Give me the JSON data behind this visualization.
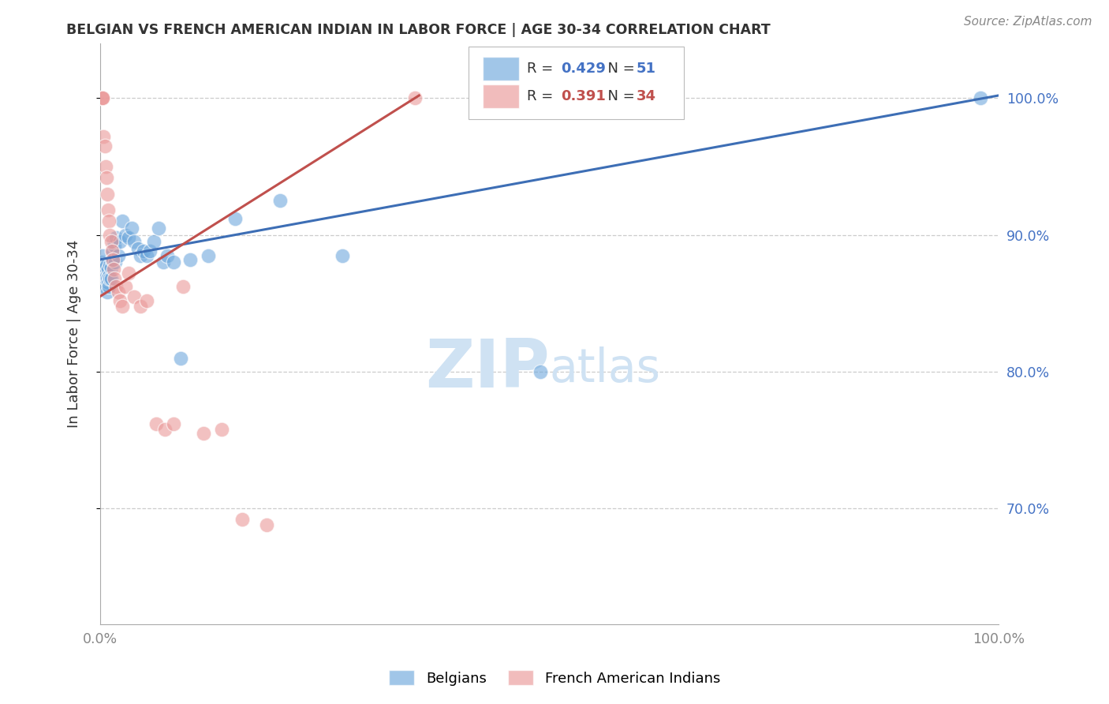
{
  "title": "BELGIAN VS FRENCH AMERICAN INDIAN IN LABOR FORCE | AGE 30-34 CORRELATION CHART",
  "source": "Source: ZipAtlas.com",
  "ylabel": "In Labor Force | Age 30-34",
  "xlim": [
    0.0,
    1.0
  ],
  "ylim": [
    0.615,
    1.04
  ],
  "yticks": [
    0.7,
    0.8,
    0.9,
    1.0
  ],
  "ytick_labels": [
    "70.0%",
    "80.0%",
    "90.0%",
    "100.0%"
  ],
  "xticks": [
    0.0,
    0.2,
    0.4,
    0.6,
    0.8,
    1.0
  ],
  "xtick_labels": [
    "0.0%",
    "",
    "",
    "",
    "",
    "100.0%"
  ],
  "legend_blue_R": "0.429",
  "legend_blue_N": "51",
  "legend_pink_R": "0.391",
  "legend_pink_N": "34",
  "blue_color": "#6fa8dc",
  "pink_color": "#ea9999",
  "blue_line_color": "#3d6eb5",
  "pink_line_color": "#c0504d",
  "watermark_color": "#cfe2f3",
  "blue_line_x": [
    0.0,
    1.0
  ],
  "blue_line_y": [
    0.882,
    1.002
  ],
  "pink_line_x": [
    0.0,
    0.355
  ],
  "pink_line_y": [
    0.855,
    1.002
  ],
  "blue_scatter_x": [
    0.002,
    0.003,
    0.004,
    0.004,
    0.005,
    0.005,
    0.006,
    0.006,
    0.007,
    0.007,
    0.008,
    0.008,
    0.009,
    0.009,
    0.01,
    0.01,
    0.011,
    0.011,
    0.012,
    0.012,
    0.013,
    0.014,
    0.015,
    0.016,
    0.017,
    0.018,
    0.02,
    0.022,
    0.025,
    0.028,
    0.032,
    0.035,
    0.038,
    0.042,
    0.045,
    0.048,
    0.052,
    0.055,
    0.06,
    0.065,
    0.07,
    0.075,
    0.082,
    0.09,
    0.1,
    0.12,
    0.15,
    0.2,
    0.27,
    0.49,
    0.98
  ],
  "blue_scatter_y": [
    0.88,
    0.885,
    0.87,
    0.878,
    0.862,
    0.872,
    0.868,
    0.876,
    0.87,
    0.878,
    0.858,
    0.868,
    0.875,
    0.865,
    0.862,
    0.87,
    0.878,
    0.868,
    0.876,
    0.868,
    0.882,
    0.888,
    0.895,
    0.892,
    0.88,
    0.898,
    0.885,
    0.895,
    0.91,
    0.9,
    0.898,
    0.905,
    0.895,
    0.89,
    0.885,
    0.888,
    0.885,
    0.888,
    0.895,
    0.905,
    0.88,
    0.885,
    0.88,
    0.81,
    0.882,
    0.885,
    0.912,
    0.925,
    0.885,
    0.8,
    1.0
  ],
  "pink_scatter_x": [
    0.002,
    0.003,
    0.003,
    0.004,
    0.005,
    0.006,
    0.007,
    0.008,
    0.009,
    0.01,
    0.011,
    0.012,
    0.013,
    0.014,
    0.015,
    0.016,
    0.018,
    0.02,
    0.022,
    0.025,
    0.028,
    0.032,
    0.038,
    0.045,
    0.052,
    0.062,
    0.072,
    0.082,
    0.092,
    0.115,
    0.135,
    0.158,
    0.185,
    0.35
  ],
  "pink_scatter_y": [
    1.0,
    1.0,
    1.0,
    0.972,
    0.965,
    0.95,
    0.942,
    0.93,
    0.918,
    0.91,
    0.9,
    0.895,
    0.888,
    0.882,
    0.875,
    0.868,
    0.862,
    0.858,
    0.852,
    0.848,
    0.862,
    0.872,
    0.855,
    0.848,
    0.852,
    0.762,
    0.758,
    0.762,
    0.862,
    0.755,
    0.758,
    0.692,
    0.688,
    1.0
  ]
}
